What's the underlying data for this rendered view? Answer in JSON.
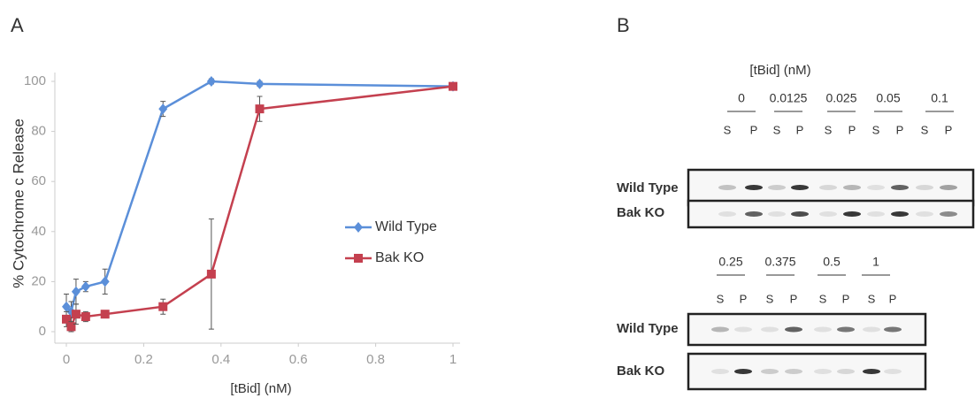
{
  "chart_data": {
    "type": "line",
    "panel_label": "A",
    "xlabel": "[tBid] (nM)",
    "ylabel": "% Cytochrome c Release",
    "x": [
      0,
      0.0125,
      0.025,
      0.05,
      0.1,
      0.25,
      0.375,
      0.5,
      1
    ],
    "series": [
      {
        "name": "Wild Type",
        "color": "#5b8fd9",
        "marker": "diamond",
        "values": [
          10,
          8,
          16,
          18,
          20,
          89,
          100,
          99,
          98
        ],
        "errors": [
          5,
          4,
          5,
          2,
          5,
          3,
          1,
          1,
          0
        ]
      },
      {
        "name": "Bak KO",
        "color": "#c4404f",
        "marker": "square",
        "values": [
          5,
          2,
          7,
          6,
          7,
          10,
          23,
          89,
          98
        ],
        "errors": [
          3,
          2,
          4,
          2,
          1,
          3,
          22,
          5,
          1
        ]
      }
    ],
    "xlim": [
      0,
      1
    ],
    "xticks": [
      0,
      0.2,
      0.4,
      0.6,
      0.8,
      1
    ],
    "ylim": [
      0,
      100
    ],
    "yticks": [
      0,
      20,
      40,
      60,
      80,
      100
    ],
    "legend": "center-right"
  },
  "blot": {
    "panel_label": "B",
    "title": "[tBid] (nM)",
    "lanes": [
      "S",
      "P"
    ],
    "rows": [
      "Wild Type",
      "Bak KO"
    ],
    "groups": [
      {
        "concentrations": [
          "0",
          "0.0125",
          "0.025",
          "0.05",
          "0.1"
        ]
      },
      {
        "concentrations": [
          "0.25",
          "0.375",
          "0.5",
          "1"
        ]
      }
    ]
  }
}
